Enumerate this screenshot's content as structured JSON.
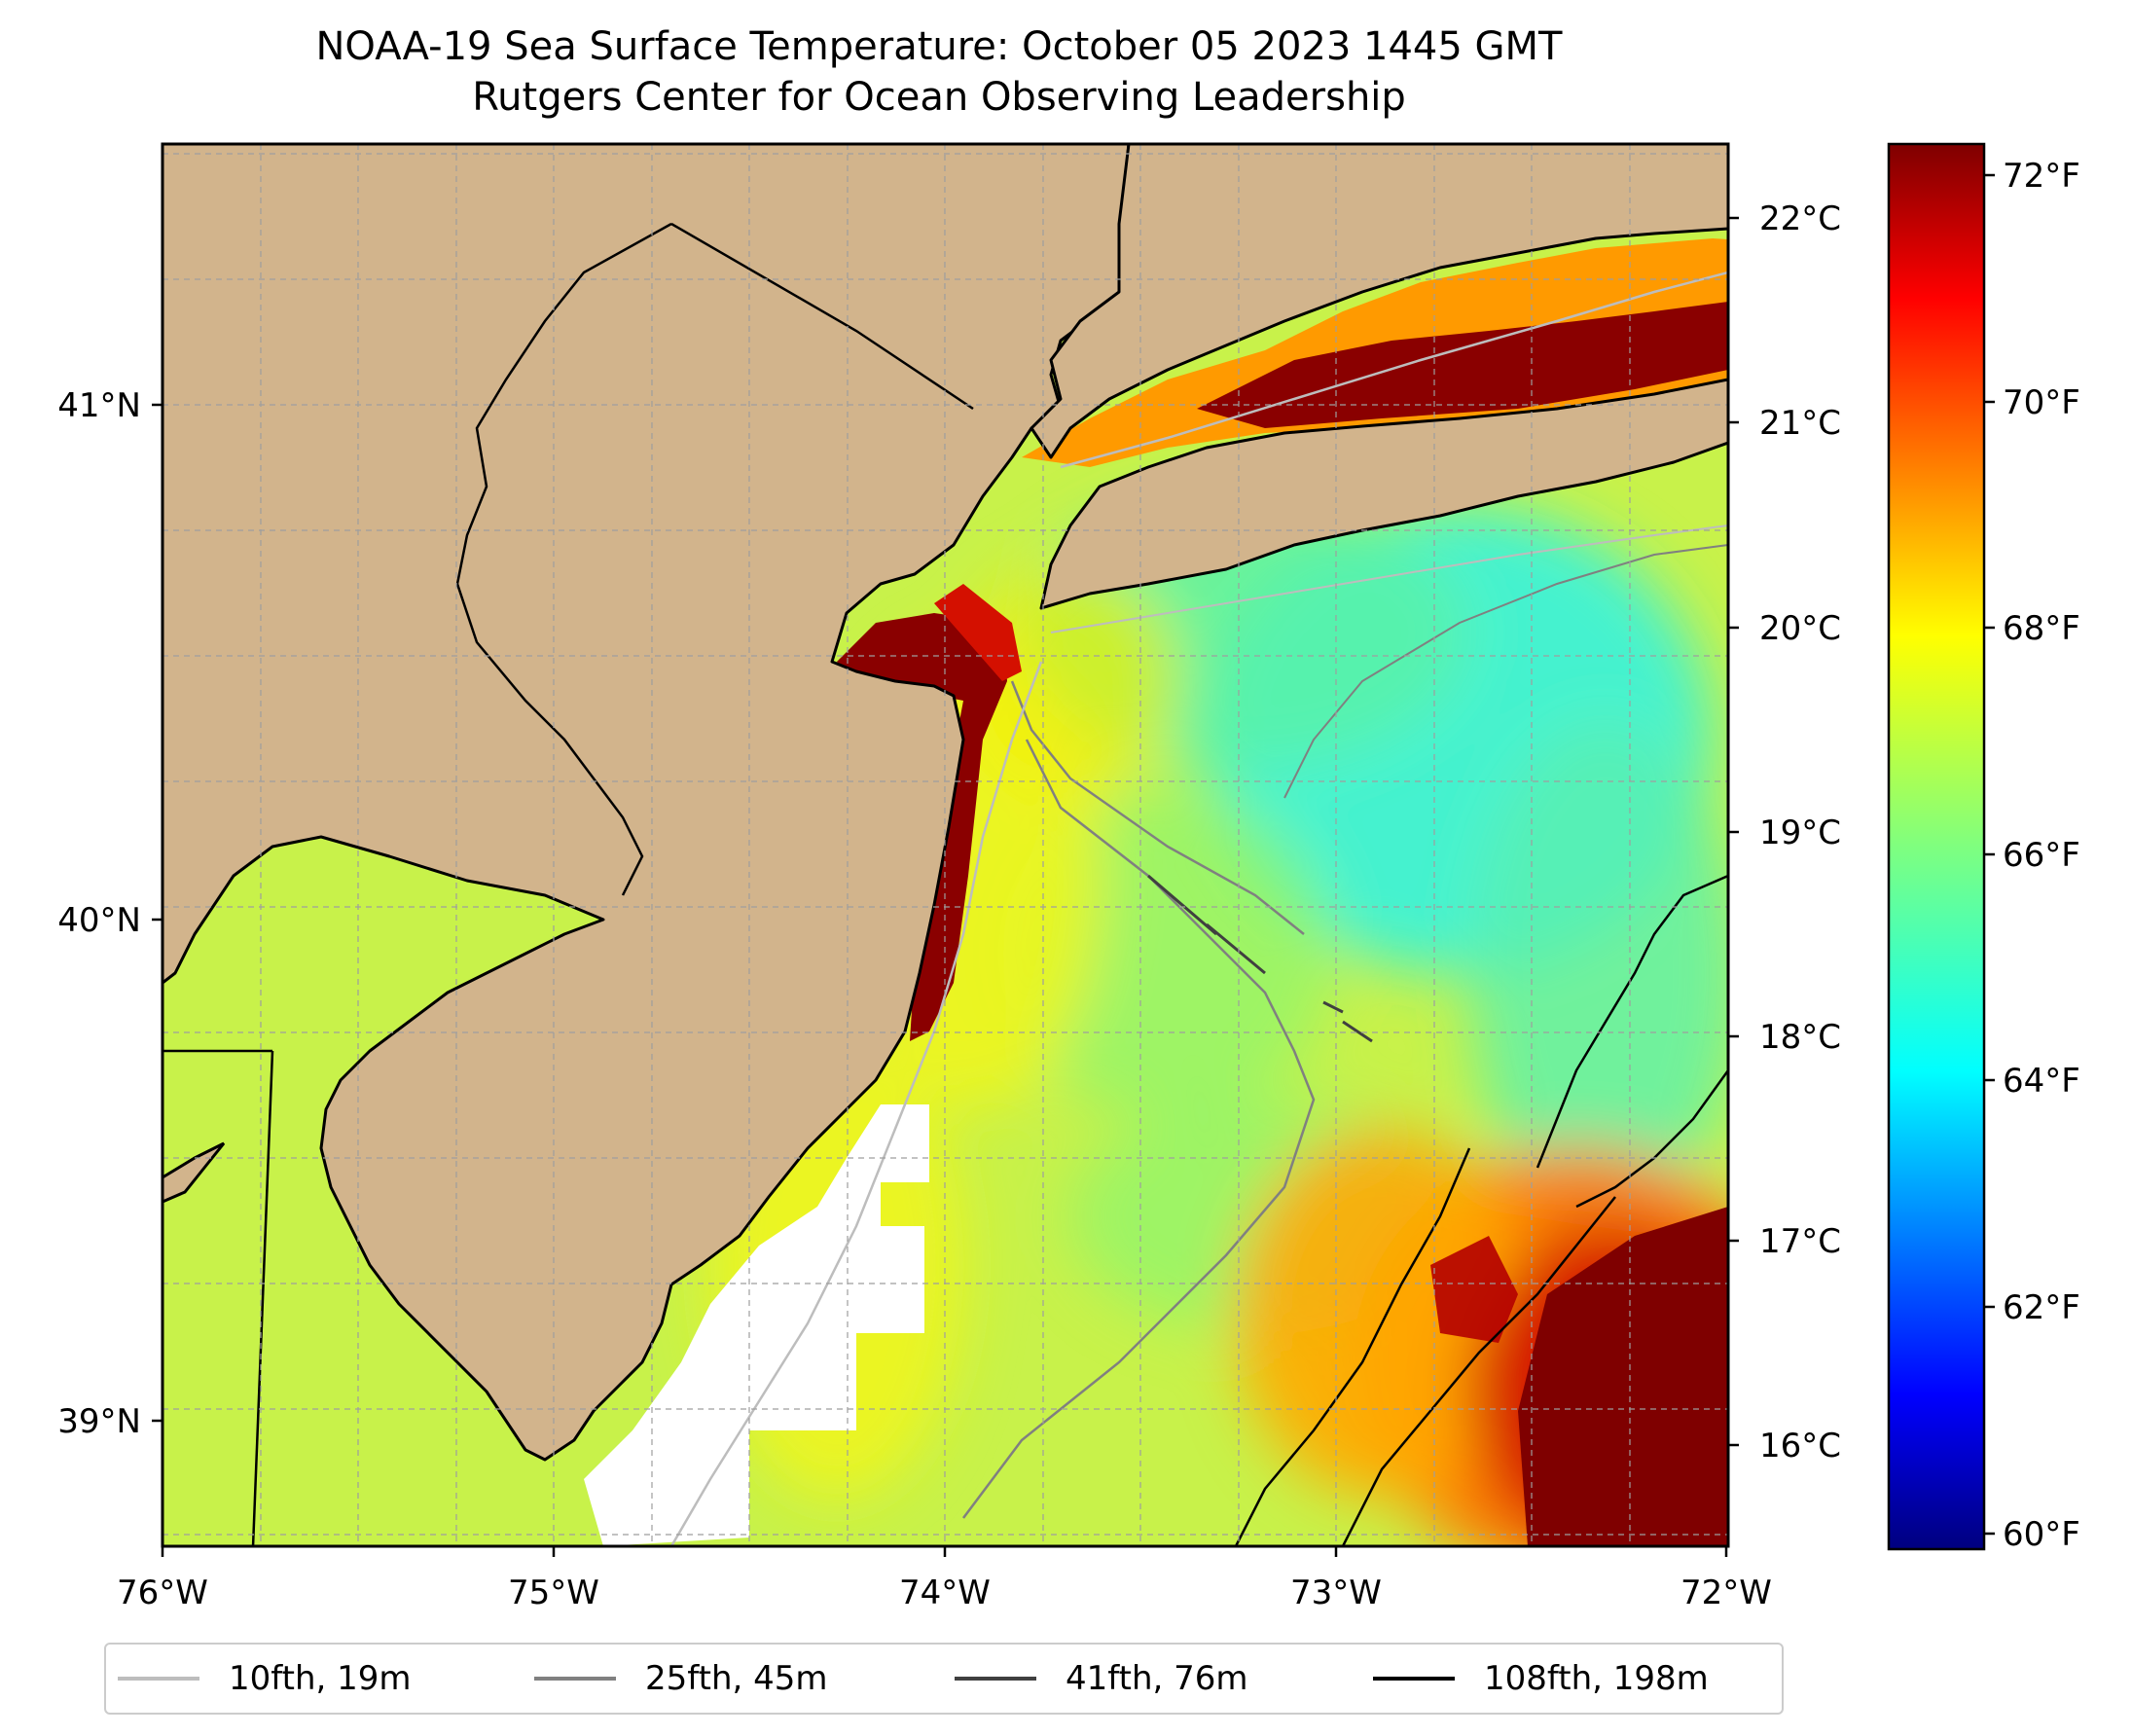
{
  "title": {
    "line1": "NOAA-19 Sea Surface Temperature: October 05 2023 1445 GMT",
    "line2": "Rutgers Center for Ocean Observing Leadership"
  },
  "axes": {
    "longitude_labels": [
      "76°W",
      "75°W",
      "74°W",
      "73°W",
      "72°W"
    ],
    "latitude_labels": [
      "41°N",
      "40°N",
      "39°N"
    ],
    "celsius_labels": [
      "22°C",
      "21°C",
      "20°C",
      "19°C",
      "18°C",
      "17°C",
      "16°C"
    ],
    "fahrenheit_labels": [
      "72°F",
      "70°F",
      "68°F",
      "66°F",
      "64°F",
      "62°F",
      "60°F"
    ]
  },
  "legend": [
    {
      "label": "10fth, 19m",
      "color": "#bdbdbd"
    },
    {
      "label": "25fth, 45m",
      "color": "#808080"
    },
    {
      "label": "41fth, 76m",
      "color": "#404040"
    },
    {
      "label": "108fth, 198m",
      "color": "#000000"
    }
  ],
  "colors": {
    "land": "#d2b48c",
    "no_data": "#ffffff",
    "colormap": [
      "#00007f",
      "#0000ff",
      "#007fff",
      "#00ffff",
      "#7fff7f",
      "#ffff00",
      "#ff7f00",
      "#ff0000",
      "#7f0000"
    ]
  }
}
